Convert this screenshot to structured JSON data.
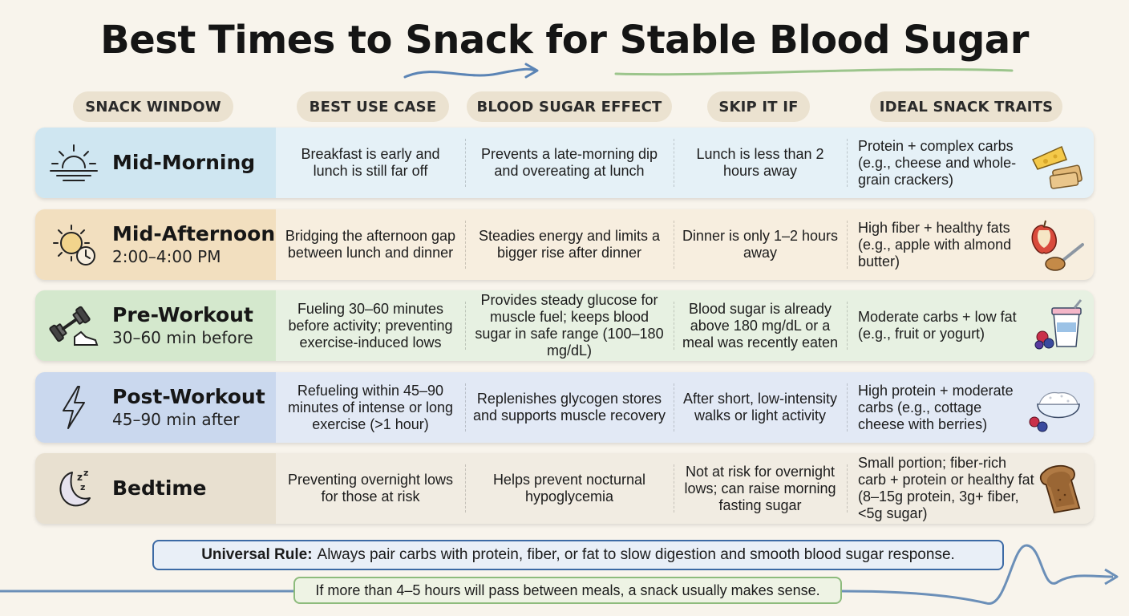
{
  "title": "Best Times to Snack for Stable Blood Sugar",
  "headers": [
    "SNACK WINDOW",
    "BEST USE CASE",
    "BLOOD SUGAR EFFECT",
    "SKIP IT IF",
    "IDEAL SNACK TRAITS"
  ],
  "rows": [
    {
      "name": "Mid-Morning",
      "sub": "",
      "icon": "sunrise-icon",
      "trait_icon": "cheese-crackers-icon",
      "color": "#cfe6f1",
      "light": "#e5f1f7",
      "use_case": "Breakfast is early and lunch is still far off",
      "effect": "Prevents a late-morning dip and overeating at lunch",
      "skip": "Lunch is less than 2 hours away",
      "traits": "Protein + complex carbs (e.g., cheese and whole-grain crackers)"
    },
    {
      "name": "Mid-Afternoon",
      "sub": "2:00–4:00 PM",
      "icon": "sun-clock-icon",
      "trait_icon": "apple-almond-butter-icon",
      "color": "#f2dfbf",
      "light": "#f7eedf",
      "use_case": "Bridging the afternoon gap between lunch and dinner",
      "effect": "Steadies energy and limits a bigger rise after dinner",
      "skip": "Dinner is only 1–2 hours away",
      "traits": "High fiber + healthy fats (e.g., apple with almond butter)"
    },
    {
      "name": "Pre-Workout",
      "sub": "30–60 min before",
      "icon": "dumbbell-shoe-icon",
      "trait_icon": "yogurt-berries-icon",
      "color": "#d4e8cd",
      "light": "#e7f1e2",
      "use_case": "Fueling 30–60 minutes before activity; preventing exercise-induced lows",
      "effect": "Provides steady glucose for muscle fuel; keeps blood sugar in safe range (100–180 mg/dL)",
      "skip": "Blood sugar is already above 180 mg/dL or a meal was recently eaten",
      "traits": "Moderate carbs + low fat (e.g., fruit or yogurt)"
    },
    {
      "name": "Post-Workout",
      "sub": "45–90 min after",
      "icon": "lightning-icon",
      "trait_icon": "cottage-cheese-berries-icon",
      "color": "#cad8ee",
      "light": "#e2e9f5",
      "use_case": "Refueling within 45–90 minutes of intense or long exercise (>1 hour)",
      "effect": "Replenishes glycogen stores and supports muscle recovery",
      "skip": "After short, low-intensity walks or light activity",
      "traits": "High protein + moderate carbs (e.g., cottage cheese with berries)"
    },
    {
      "name": "Bedtime",
      "sub": "",
      "icon": "moon-sleep-icon",
      "trait_icon": "toast-icon",
      "color": "#e8e0d0",
      "light": "#f1ece2",
      "use_case": "Preventing overnight lows for those at risk",
      "effect": "Helps prevent nocturnal hypoglycemia",
      "skip": "Not at risk for overnight lows; can raise morning fasting sugar",
      "traits": "Small portion; fiber-rich carb + protein or healthy fat (8–15g protein, 3g+ fiber, <5g sugar)"
    }
  ],
  "rule_label": "Universal Rule:",
  "rule_text": "Always pair carbs with protein, fiber, or fat to slow digestion and smooth blood sugar response.",
  "tip_text": "If more than 4–5 hours will pass between meals, a snack usually makes sense.",
  "colors": {
    "rule_border": "#3c6aa5",
    "tip_border": "#8dbb7c",
    "background": "#f8f4ec"
  }
}
